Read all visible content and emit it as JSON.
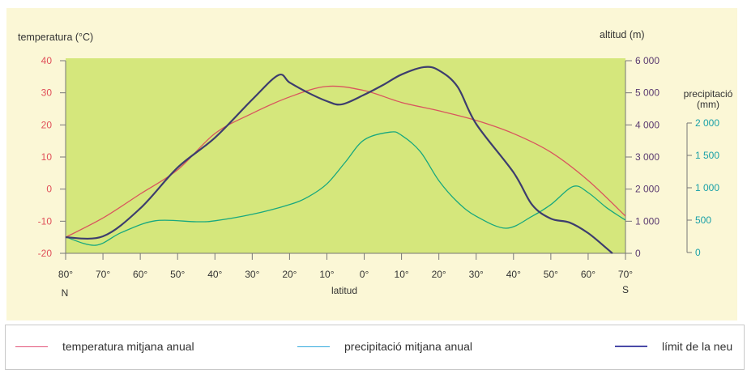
{
  "chart_data": {
    "type": "line",
    "xlabel": "latitud",
    "x_end_labels": {
      "left": "N",
      "right": "S"
    },
    "x_ticks": [
      "80°",
      "70°",
      "60°",
      "50°",
      "40°",
      "30°",
      "20°",
      "10°",
      "0°",
      "10°",
      "20°",
      "30°",
      "40°",
      "50°",
      "60°",
      "70°"
    ],
    "x_range": [
      80,
      -70
    ],
    "y_left": {
      "label": "temperatura (°C)",
      "range": [
        -20,
        40
      ],
      "ticks": [
        "40",
        "30",
        "20",
        "10",
        "0",
        "-10",
        "-20"
      ],
      "color": "#e0505a"
    },
    "y_right1": {
      "label": "altitud (m)",
      "range": [
        0,
        6000
      ],
      "ticks": [
        "6 000",
        "5 000",
        "4 000",
        "3 000",
        "2 000",
        "1 000",
        "0"
      ],
      "color": "#5a3a70"
    },
    "y_right2": {
      "label": "precipitació",
      "label2": "(mm)",
      "range": [
        0,
        2000
      ],
      "ticks": [
        "2 000",
        "1 500",
        "1 000",
        "500",
        "0"
      ],
      "color": "#1aa0a8"
    },
    "series": [
      {
        "name": "temperatura mitjana anual",
        "axis": "temp",
        "color": "#d9555e",
        "x": [
          80,
          70,
          60,
          50,
          40,
          30,
          20,
          10,
          0,
          -10,
          -20,
          -30,
          -40,
          -50,
          -60,
          -70
        ],
        "y": [
          -15,
          -9,
          -1.5,
          6,
          17.3,
          23.6,
          28.7,
          32,
          30.7,
          27,
          24.4,
          21.4,
          17.3,
          11.5,
          2.7,
          -8.4
        ]
      },
      {
        "name": "precipitació mitjana anual",
        "axis": "precip",
        "color": "#18a87e",
        "x": [
          80,
          72,
          65,
          56,
          45,
          40,
          30,
          20,
          15,
          10,
          5,
          0,
          -7,
          -10,
          -15,
          -20,
          -25,
          -30,
          -38,
          -45,
          -50,
          -56,
          -60,
          -65,
          -70
        ],
        "y": [
          240,
          112,
          310,
          490,
          475,
          490,
          590,
          740,
          860,
          1060,
          1400,
          1740,
          1860,
          1810,
          1560,
          1110,
          780,
          560,
          375,
          560,
          740,
          1020,
          925,
          690,
          500
        ]
      },
      {
        "name": "límit de la neu",
        "axis": "alt",
        "color": "#3d3d6e",
        "x": [
          80,
          70,
          60,
          50,
          40,
          30,
          23,
          20,
          15,
          10,
          6,
          0,
          -5,
          -10,
          -16,
          -20,
          -25,
          -30,
          -40,
          -45,
          -50,
          -55,
          -60,
          -65,
          -66.5
        ],
        "y": [
          500,
          530,
          1400,
          2670,
          3600,
          4790,
          5550,
          5320,
          5000,
          4740,
          4640,
          4940,
          5240,
          5570,
          5800,
          5700,
          5190,
          4030,
          2520,
          1510,
          1080,
          960,
          630,
          150,
          0
        ]
      }
    ]
  },
  "legend": [
    {
      "label": "temperatura mitjana anual",
      "color": "#e2557a"
    },
    {
      "label": "precipitació mitjana anual",
      "color": "#33aadd"
    },
    {
      "label": "límit de la neu",
      "color": "#4a4aa8"
    }
  ]
}
